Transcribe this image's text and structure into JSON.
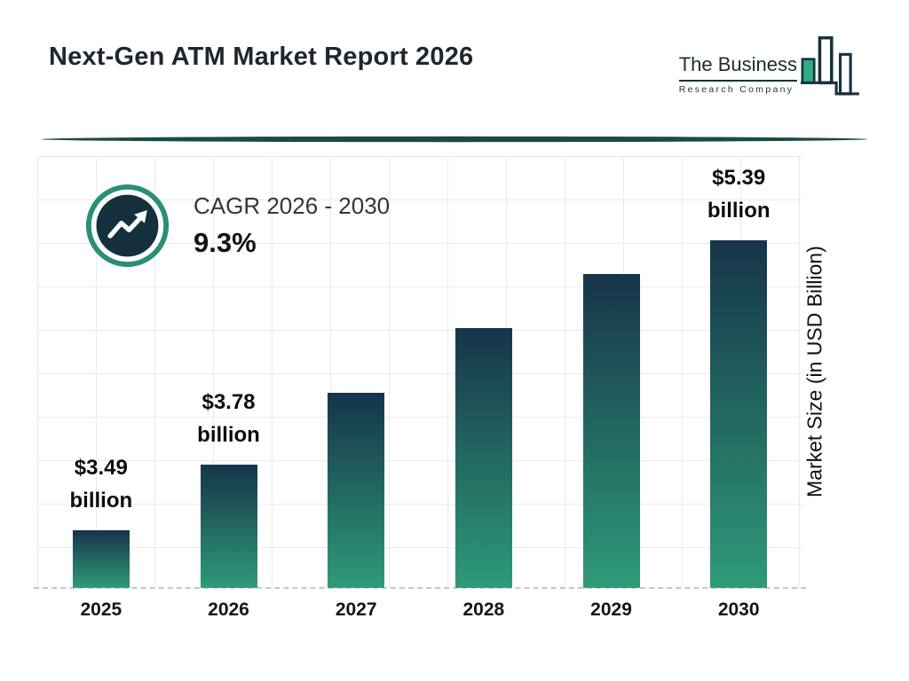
{
  "page": {
    "title": "Next-Gen ATM Market Report 2026"
  },
  "logo": {
    "line1": "The Business",
    "line2": "Research Company"
  },
  "cagr": {
    "label": "CAGR 2026 - 2030",
    "value": "9.3%"
  },
  "colors": {
    "accent_teal": "#2a8f74",
    "dark_navy": "#14303d",
    "divider_teal": "#1b4b45",
    "bar_gradient_top": "#16344a",
    "bar_gradient_bottom": "#2f9a78",
    "grid": "#ebebeb"
  },
  "chart_data": {
    "type": "bar",
    "title": "Next-Gen ATM Market Report 2026",
    "categories": [
      "2025",
      "2026",
      "2027",
      "2028",
      "2029",
      "2030"
    ],
    "values": [
      3.49,
      3.78,
      4.13,
      4.51,
      4.93,
      5.39
    ],
    "value_labels": [
      "$3.49",
      "$3.78",
      null,
      null,
      null,
      "$5.39"
    ],
    "unit_label": "billion",
    "xlabel": "",
    "ylabel": "Market Size (in USD Billion)",
    "ylim": [
      3.0,
      5.6
    ],
    "grid": true,
    "legend": false,
    "bar_height_fractions": [
      0.134,
      0.285,
      0.451,
      0.602,
      0.726,
      0.804
    ]
  }
}
